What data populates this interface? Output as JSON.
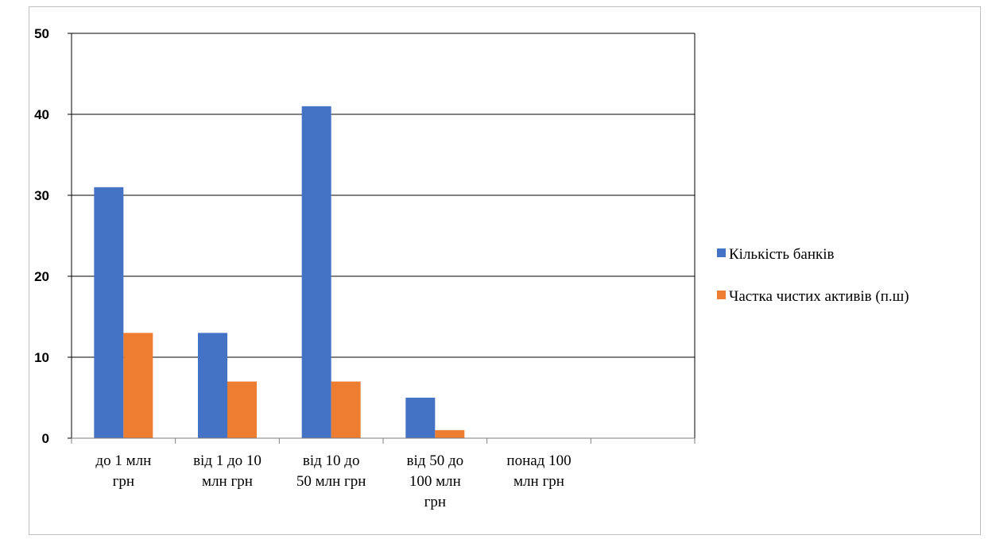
{
  "chart_data": {
    "type": "bar",
    "title": "",
    "xlabel": "",
    "ylabel": "",
    "categories": [
      [
        "до 1 млн",
        "грн"
      ],
      [
        "від 1 до 10",
        "млн грн"
      ],
      [
        "від 10 до",
        "50 млн грн"
      ],
      [
        "від 50 до",
        "100 млн",
        "грн"
      ],
      [
        "понад 100",
        "млн грн"
      ],
      [
        ""
      ]
    ],
    "series": [
      {
        "name": "Кількість банків",
        "color": "#4472C4",
        "values": [
          31,
          13,
          41,
          5,
          0,
          0
        ]
      },
      {
        "name": "Частка чистих активів (п.ш)",
        "color": "#ED7D31",
        "values": [
          13,
          7,
          7,
          1,
          0,
          0
        ]
      }
    ],
    "ylim": [
      0,
      50
    ],
    "yticks": [
      0,
      10,
      20,
      30,
      40,
      50
    ],
    "grid": true,
    "legend_position": "right"
  }
}
